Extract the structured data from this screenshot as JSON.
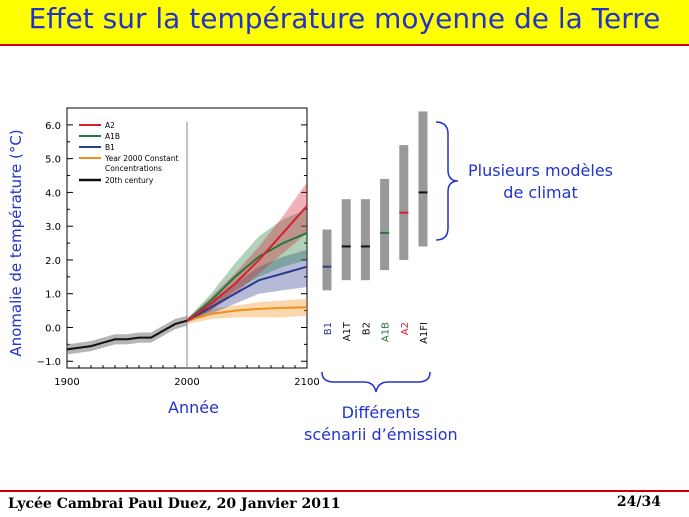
{
  "slide": {
    "title": "Effet sur la température moyenne de la Terre",
    "footer_left": "Lycée Cambrai Paul Duez, 20 Janvier 2011",
    "footer_right": "24/34",
    "ylabel": "Anomalie de température (°C)",
    "xlabel": "Année",
    "models_note_line1": "Plusieurs modèles",
    "models_note_line2": "de climat",
    "scenarios_note_line1": "Différents",
    "scenarios_note_line2": "scénarii d’émission"
  },
  "colors": {
    "title_background": "#ffff00",
    "title_text": "#2233cc",
    "rule": "#cc0000",
    "annotation": "#2233cc",
    "a2": "#d62030",
    "a1b": "#1f7a3c",
    "b1": "#2a3c8c",
    "year2000": "#f0901a",
    "century20": "#111111",
    "range_bar": "#999999"
  },
  "chart_data": [
    {
      "type": "line",
      "xlim": [
        1900,
        2100
      ],
      "ylim": [
        -1.2,
        6.5
      ],
      "x_ticks": [
        1900,
        2000,
        2100
      ],
      "y_ticks": [
        -1.0,
        0.0,
        1.0,
        2.0,
        3.0,
        4.0,
        5.0,
        6.0
      ],
      "x_tick_labels": [
        "1900",
        "2000",
        "2100"
      ],
      "y_tick_labels": [
        "−1.0",
        "0.0",
        "1.0",
        "2.0",
        "3.0",
        "4.0",
        "5.0",
        "6.0"
      ],
      "vertical_marker_x": 2000,
      "legend_position": "top-left",
      "series": [
        {
          "name": "A2",
          "color": "#d62030",
          "x": [
            2000,
            2020,
            2040,
            2060,
            2080,
            2100
          ],
          "y": [
            0.2,
            0.7,
            1.3,
            2.0,
            2.8,
            3.6
          ],
          "lower": [
            0.15,
            0.5,
            1.0,
            1.6,
            2.2,
            2.8
          ],
          "upper": [
            0.25,
            0.9,
            1.6,
            2.4,
            3.3,
            4.3
          ]
        },
        {
          "name": "A1B",
          "color": "#1f7a3c",
          "x": [
            2000,
            2020,
            2040,
            2060,
            2080,
            2100
          ],
          "y": [
            0.2,
            0.8,
            1.5,
            2.1,
            2.5,
            2.8
          ],
          "lower": [
            0.15,
            0.5,
            1.1,
            1.5,
            1.8,
            2.0
          ],
          "upper": [
            0.25,
            1.0,
            1.9,
            2.7,
            3.2,
            3.5
          ]
        },
        {
          "name": "B1",
          "color": "#2a3c8c",
          "x": [
            2000,
            2020,
            2040,
            2060,
            2080,
            2100
          ],
          "y": [
            0.2,
            0.6,
            1.0,
            1.4,
            1.6,
            1.8
          ],
          "lower": [
            0.15,
            0.4,
            0.7,
            1.0,
            1.1,
            1.2
          ],
          "upper": [
            0.25,
            0.8,
            1.3,
            1.8,
            2.1,
            2.3
          ]
        },
        {
          "name": "Year 2000 Constant",
          "name_line2": "Concentrations",
          "color": "#f0901a",
          "x": [
            2000,
            2020,
            2040,
            2060,
            2080,
            2100
          ],
          "y": [
            0.2,
            0.4,
            0.5,
            0.55,
            0.58,
            0.6
          ],
          "lower": [
            0.1,
            0.25,
            0.3,
            0.3,
            0.3,
            0.35
          ],
          "upper": [
            0.3,
            0.55,
            0.65,
            0.75,
            0.8,
            0.85
          ]
        },
        {
          "name": "20th century",
          "color": "#111111",
          "x": [
            1900,
            1910,
            1920,
            1930,
            1940,
            1950,
            1960,
            1970,
            1980,
            1990,
            2000
          ],
          "y": [
            -0.65,
            -0.6,
            -0.55,
            -0.45,
            -0.35,
            -0.35,
            -0.3,
            -0.3,
            -0.1,
            0.1,
            0.2
          ],
          "lower": [
            -0.8,
            -0.75,
            -0.7,
            -0.6,
            -0.5,
            -0.5,
            -0.45,
            -0.45,
            -0.25,
            -0.05,
            0.05
          ],
          "upper": [
            -0.5,
            -0.45,
            -0.4,
            -0.3,
            -0.2,
            -0.2,
            -0.15,
            -0.15,
            0.05,
            0.25,
            0.35
          ]
        }
      ]
    },
    {
      "type": "bar",
      "description_kind": "range",
      "categories": [
        "B1",
        "A1T",
        "B2",
        "A1B",
        "A2",
        "A1FI"
      ],
      "best_estimate": [
        1.8,
        2.4,
        2.4,
        2.8,
        3.4,
        4.0
      ],
      "low": [
        1.1,
        1.4,
        1.4,
        1.7,
        2.0,
        2.4
      ],
      "high": [
        2.9,
        3.8,
        3.8,
        4.4,
        5.4,
        6.4
      ],
      "marker_colors": [
        "#2a3c8c",
        "#111111",
        "#111111",
        "#1f7a3c",
        "#d62030",
        "#111111"
      ]
    }
  ]
}
